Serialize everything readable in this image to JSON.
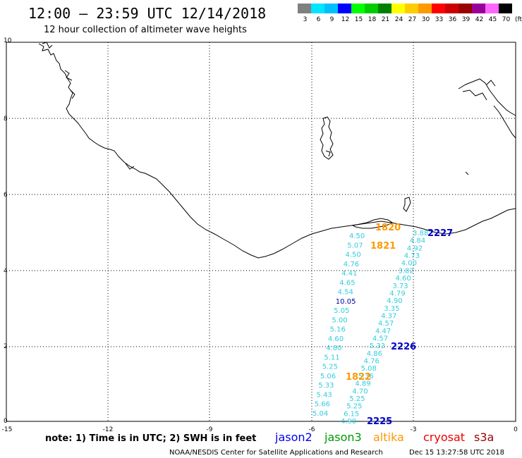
{
  "header": {
    "title": "12:00 – 23:59 UTC 12/14/2018",
    "subtitle": "12 hour collection of altimeter wave heights"
  },
  "legend": {
    "unit": "(ft)",
    "bins": [
      {
        "label": "3",
        "color": "#808080"
      },
      {
        "label": "6",
        "color": "#00e5ff"
      },
      {
        "label": "9",
        "color": "#00bfff"
      },
      {
        "label": "12",
        "color": "#0000ff"
      },
      {
        "label": "15",
        "color": "#00ff00"
      },
      {
        "label": "18",
        "color": "#00cc00"
      },
      {
        "label": "21",
        "color": "#008000"
      },
      {
        "label": "24",
        "color": "#ffff00"
      },
      {
        "label": "27",
        "color": "#ffcc00"
      },
      {
        "label": "30",
        "color": "#ff9900"
      },
      {
        "label": "33",
        "color": "#ff0000"
      },
      {
        "label": "36",
        "color": "#cc0000"
      },
      {
        "label": "39",
        "color": "#990000"
      },
      {
        "label": "42",
        "color": "#990099"
      },
      {
        "label": "45",
        "color": "#ff66ff"
      },
      {
        "label": "70",
        "color": "#000000"
      }
    ]
  },
  "axes": {
    "xticks": [
      "-15",
      "-12",
      "-9",
      "-6",
      "-3",
      "0"
    ],
    "yticks": [
      "0",
      "2",
      "4",
      "6",
      "8",
      "10"
    ]
  },
  "tracks": {
    "west": {
      "color": "#33ccdd",
      "values": [
        "4.50",
        "5.07",
        "4.50",
        "4.76",
        "4.41",
        "4.65",
        "4.54",
        "10.05",
        "5.05",
        "5.00",
        "5.16",
        "4.60",
        "4.80",
        "5.11",
        "5.25",
        "5.06",
        "5.33",
        "5.43",
        "5.66",
        "5.04"
      ]
    },
    "east": {
      "color": "#33ccdd",
      "values": [
        "3.88",
        "4.84",
        "4.92",
        "4.73",
        "4.00",
        "3.82",
        "4.60",
        "3.73",
        "4.79",
        "4.90",
        "3.35",
        "4.37",
        "4.57",
        "4.47",
        "4.57",
        "5.33",
        "4.86",
        "4.76",
        "5.08",
        "5.36",
        "4.89",
        "4.70",
        "5.25",
        "5.25",
        "6.15",
        "4.90"
      ]
    },
    "highlight_value": "10.05",
    "highlight_color": "#000099"
  },
  "times": [
    {
      "label": "1820",
      "color": "#ff9900"
    },
    {
      "label": "1821",
      "color": "#ff9900"
    },
    {
      "label": "1822",
      "color": "#ff9900"
    },
    {
      "label": "2227",
      "color": "#0000cc"
    },
    {
      "label": "2226",
      "color": "#0000cc"
    },
    {
      "label": "2225",
      "color": "#0000cc"
    }
  ],
  "footer": {
    "note": "note: 1) Time is in UTC; 2) SWH is in feet",
    "satellites": [
      {
        "label": "jason2",
        "color": "#0000ee"
      },
      {
        "label": "jason3",
        "color": "#009900"
      },
      {
        "label": "altika",
        "color": "#ff9900"
      },
      {
        "label": "cryosat",
        "color": "#ee0000"
      },
      {
        "label": "s3a",
        "color": "#990000"
      }
    ],
    "credit": "NOAA/NESDIS Center for Satellite Applications and Research",
    "timestamp": "Dec 15 13:27:58 UTC 2018"
  }
}
